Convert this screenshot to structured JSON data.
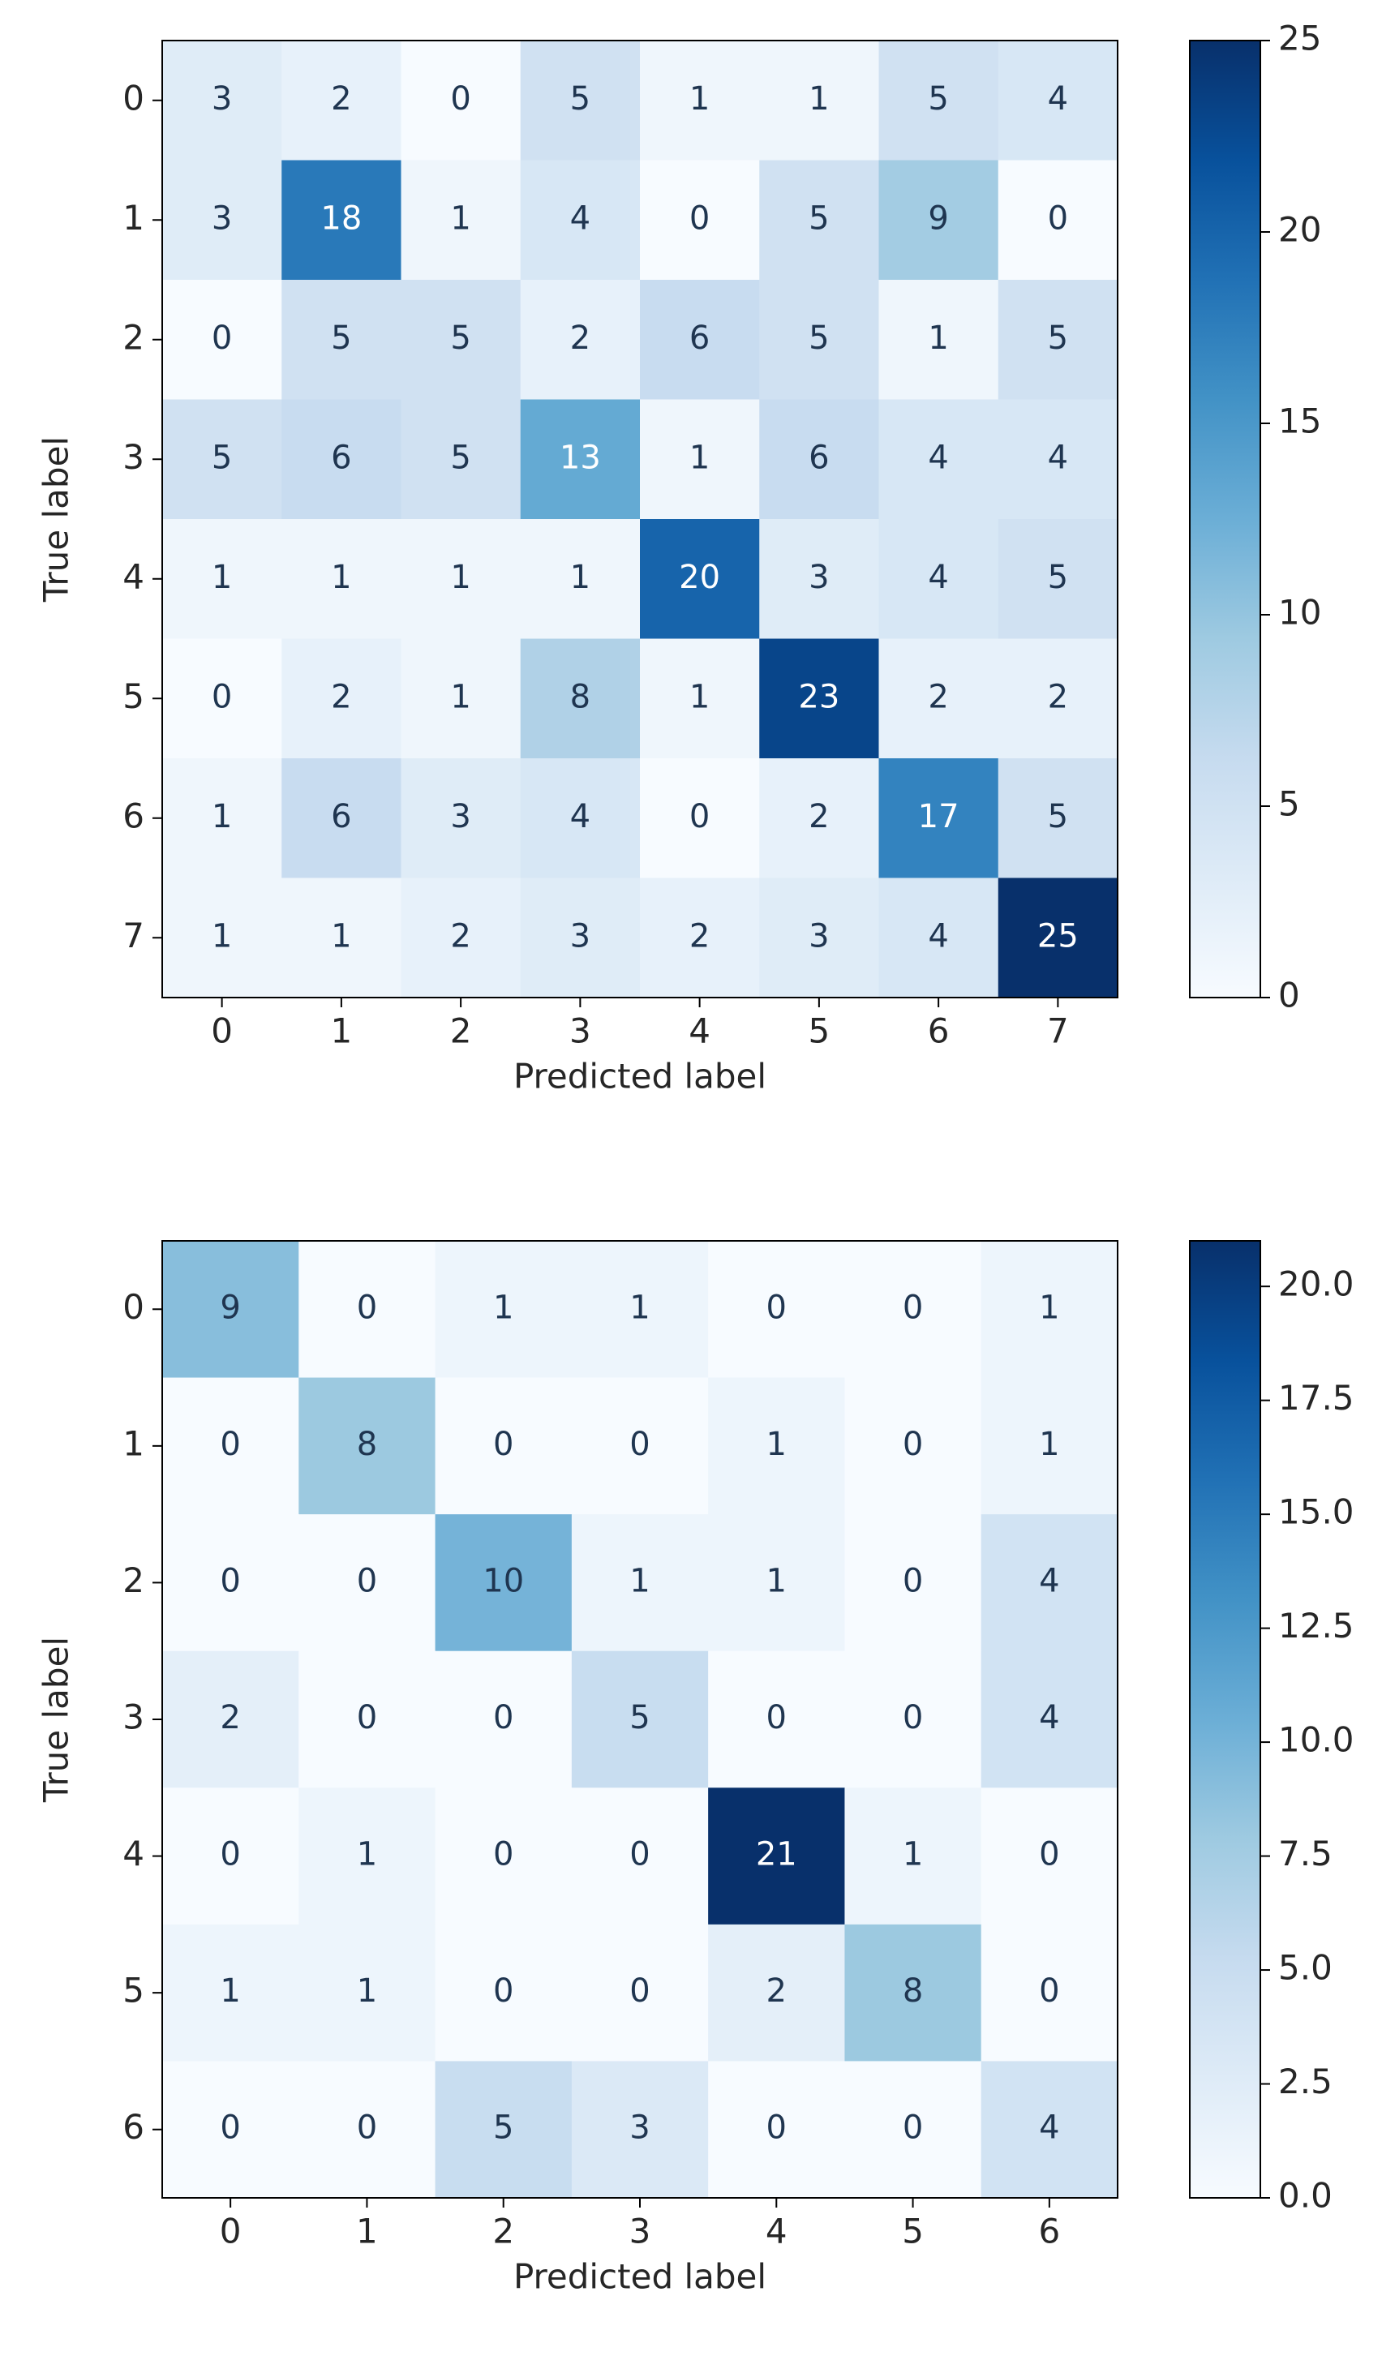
{
  "chart_data": [
    {
      "type": "heatmap",
      "colormap": "Blues",
      "x": [
        "0",
        "1",
        "2",
        "3",
        "4",
        "5",
        "6",
        "7"
      ],
      "y": [
        "0",
        "1",
        "2",
        "3",
        "4",
        "5",
        "6",
        "7"
      ],
      "xlabel": "Predicted label",
      "ylabel": "True label",
      "values": [
        [
          3,
          2,
          0,
          5,
          1,
          1,
          5,
          4
        ],
        [
          3,
          18,
          1,
          4,
          0,
          5,
          9,
          0
        ],
        [
          0,
          5,
          5,
          2,
          6,
          5,
          1,
          5
        ],
        [
          5,
          6,
          5,
          13,
          1,
          6,
          4,
          4
        ],
        [
          1,
          1,
          1,
          1,
          20,
          3,
          4,
          5
        ],
        [
          0,
          2,
          1,
          8,
          1,
          23,
          2,
          2
        ],
        [
          1,
          6,
          3,
          4,
          0,
          2,
          17,
          5
        ],
        [
          1,
          1,
          2,
          3,
          2,
          3,
          4,
          25
        ]
      ],
      "clim": [
        0,
        25
      ],
      "cticks": [
        0,
        5,
        10,
        15,
        20,
        25
      ]
    },
    {
      "type": "heatmap",
      "colormap": "Blues",
      "x": [
        "0",
        "1",
        "2",
        "3",
        "4",
        "5",
        "6"
      ],
      "y": [
        "0",
        "1",
        "2",
        "3",
        "4",
        "5",
        "6"
      ],
      "xlabel": "Predicted label",
      "ylabel": "True label",
      "values": [
        [
          9,
          0,
          1,
          1,
          0,
          0,
          1
        ],
        [
          0,
          8,
          0,
          0,
          1,
          0,
          1
        ],
        [
          0,
          0,
          10,
          1,
          1,
          0,
          4
        ],
        [
          2,
          0,
          0,
          5,
          0,
          0,
          4
        ],
        [
          0,
          1,
          0,
          0,
          21,
          1,
          0
        ],
        [
          1,
          1,
          0,
          0,
          2,
          8,
          0
        ],
        [
          0,
          0,
          5,
          3,
          0,
          0,
          4
        ]
      ],
      "clim": [
        0,
        21
      ],
      "cticks": [
        {
          "value": 0,
          "label": "0.0"
        },
        2.5,
        {
          "value": 5,
          "label": "5.0"
        },
        7.5,
        {
          "value": 10,
          "label": "10.0"
        },
        12.5,
        {
          "value": 15,
          "label": "15.0"
        },
        17.5,
        {
          "value": 20,
          "label": "20.0"
        }
      ]
    }
  ]
}
